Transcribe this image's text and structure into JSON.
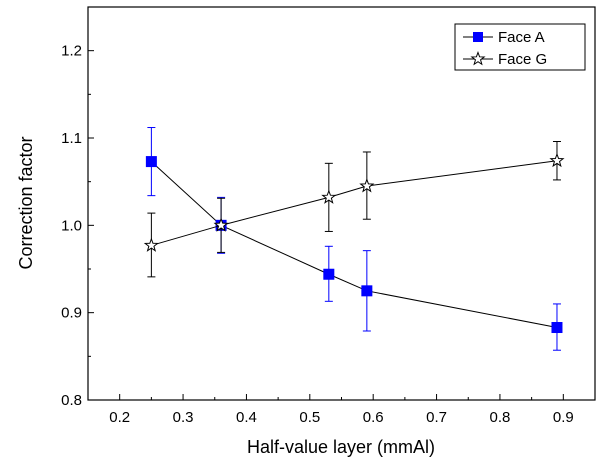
{
  "chart_data": {
    "type": "line",
    "title": "",
    "xlabel": "Half-value layer (mmAl)",
    "ylabel": "Correction factor",
    "xlim": [
      0.15,
      0.95
    ],
    "ylim": [
      0.8,
      1.25
    ],
    "xticks": [
      0.2,
      0.3,
      0.4,
      0.5,
      0.6,
      0.7,
      0.8,
      0.9
    ],
    "xtick_labels": [
      "0.2",
      "0.3",
      "0.4",
      "0.5",
      "0.6",
      "0.7",
      "0.8",
      "0.9"
    ],
    "yticks": [
      0.8,
      0.9,
      1.0,
      1.1,
      1.2
    ],
    "ytick_labels": [
      "0.8",
      "0.9",
      "1.0",
      "1.1",
      "1.2"
    ],
    "grid": false,
    "legend_position": "top-right",
    "series": [
      {
        "name": "Face A",
        "marker": "filled-square",
        "color": "#0000ff",
        "line_color": "#000000",
        "x": [
          0.25,
          0.36,
          0.53,
          0.59,
          0.89
        ],
        "y": [
          1.073,
          1.0,
          0.944,
          0.925,
          0.883
        ],
        "err_low": [
          1.034,
          0.968,
          0.913,
          0.879,
          0.857
        ],
        "err_high": [
          1.112,
          1.032,
          0.976,
          0.971,
          0.91
        ]
      },
      {
        "name": "Face G",
        "marker": "open-star",
        "color": "#000000",
        "line_color": "#000000",
        "x": [
          0.25,
          0.36,
          0.53,
          0.59,
          0.89
        ],
        "y": [
          0.977,
          1.0,
          1.032,
          1.045,
          1.074
        ],
        "err_low": [
          0.941,
          0.969,
          0.993,
          1.007,
          1.052
        ],
        "err_high": [
          1.014,
          1.031,
          1.071,
          1.084,
          1.096
        ]
      }
    ]
  }
}
